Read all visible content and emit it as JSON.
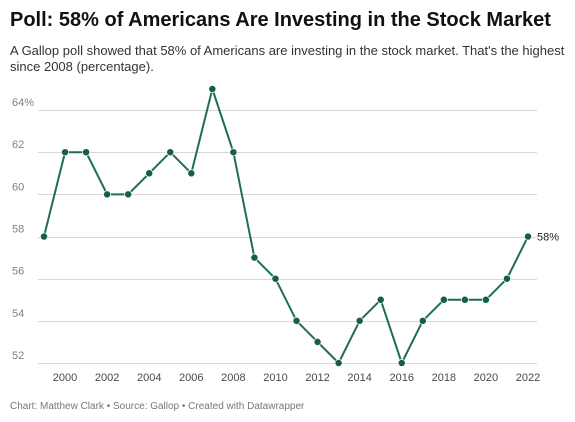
{
  "header": {
    "title": "Poll: 58% of Americans Are Investing in the Stock Market",
    "subtitle": "A Gallop poll showed that 58% of Americans are investing in the stock market. That's the highest since 2008 (percentage)."
  },
  "footer": {
    "credit": "Chart: Matthew Clark • Source: Gallop • Created with Datawrapper"
  },
  "colors": {
    "line": "#1e6f52",
    "point": "#155f45",
    "grid": "#d8d8d8"
  },
  "chart_data": {
    "type": "line",
    "title": "Poll: 58% of Americans Are Investing in the Stock Market",
    "subtitle": "A Gallop poll showed that 58% of Americans are investing in the stock market. That's the highest since 2008 (percentage).",
    "xlabel": "",
    "ylabel": "",
    "x": [
      1999,
      2000,
      2001,
      2002,
      2003,
      2004,
      2005,
      2006,
      2007,
      2008,
      2009,
      2010,
      2011,
      2012,
      2013,
      2014,
      2015,
      2016,
      2017,
      2018,
      2019,
      2020,
      2021,
      2022
    ],
    "series": [
      {
        "values": [
          58,
          62,
          62,
          60,
          60,
          61,
          62,
          61,
          65,
          62,
          57,
          56,
          54,
          53,
          52,
          54,
          55,
          52,
          54,
          55,
          55,
          55,
          56,
          58
        ]
      }
    ],
    "xlim": [
      1999,
      2022
    ],
    "ylim": [
      52,
      65
    ],
    "y_ticks": [
      {
        "value": 52,
        "label": "52"
      },
      {
        "value": 54,
        "label": "54"
      },
      {
        "value": 56,
        "label": "56"
      },
      {
        "value": 58,
        "label": "58"
      },
      {
        "value": 60,
        "label": "60"
      },
      {
        "value": 62,
        "label": "62"
      },
      {
        "value": 64,
        "label": "64%"
      }
    ],
    "x_ticks": [
      {
        "value": 2000,
        "label": "2000"
      },
      {
        "value": 2002,
        "label": "2002"
      },
      {
        "value": 2004,
        "label": "2004"
      },
      {
        "value": 2006,
        "label": "2006"
      },
      {
        "value": 2008,
        "label": "2008"
      },
      {
        "value": 2010,
        "label": "2010"
      },
      {
        "value": 2012,
        "label": "2012"
      },
      {
        "value": 2014,
        "label": "2014"
      },
      {
        "value": 2016,
        "label": "2016"
      },
      {
        "value": 2018,
        "label": "2018"
      },
      {
        "value": 2020,
        "label": "2020"
      },
      {
        "value": 2022,
        "label": "2022"
      }
    ],
    "annotations": [
      {
        "x": 2022,
        "y": 58,
        "label": "58%"
      }
    ],
    "grid": true,
    "legend": "none"
  }
}
